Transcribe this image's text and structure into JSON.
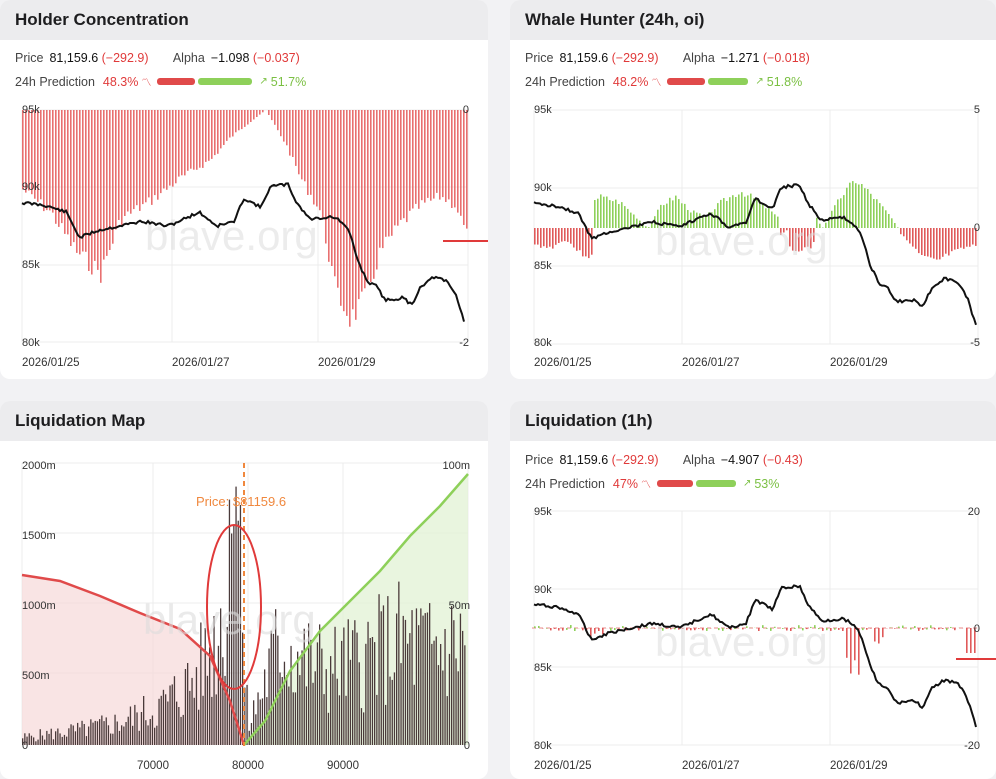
{
  "panels": {
    "holder": {
      "title": "Holder Concentration",
      "price_label": "Price",
      "price": "81,159.6",
      "price_change": "(−292.9)",
      "alpha_label": "Alpha",
      "alpha": "−1.098",
      "alpha_change": "(−0.037)",
      "pred_label": "24h Prediction",
      "pred_down": "48.3%",
      "pred_up": "51.7%",
      "left_ticks": [
        "95k",
        "90k",
        "85k",
        "80k"
      ],
      "right_ticks": [
        "0",
        "-2"
      ],
      "x_ticks": [
        "2026/01/25",
        "2026/01/27",
        "2026/01/29"
      ],
      "watermark": "blave.org"
    },
    "whale": {
      "title": "Whale Hunter (24h, oi)",
      "price_label": "Price",
      "price": "81,159.6",
      "price_change": "(−292.9)",
      "alpha_label": "Alpha",
      "alpha": "−1.271",
      "alpha_change": "(−0.018)",
      "pred_label": "24h Prediction",
      "pred_down": "48.2%",
      "pred_up": "51.8%",
      "left_ticks": [
        "95k",
        "90k",
        "85k",
        "80k"
      ],
      "right_ticks": [
        "5",
        "0",
        "-5"
      ],
      "x_ticks": [
        "2026/01/25",
        "2026/01/27",
        "2026/01/29"
      ],
      "watermark": "blave.org"
    },
    "liqmap": {
      "title": "Liquidation Map",
      "left_ticks": [
        "2000m",
        "1500m",
        "1000m",
        "500m",
        "0"
      ],
      "right_ticks": [
        "100m",
        "50m",
        "0"
      ],
      "x_ticks": [
        "70000",
        "80000",
        "90000"
      ],
      "price_annotation": "Price: $81159.6",
      "watermark": "blave.org"
    },
    "liq1h": {
      "title": "Liquidation (1h)",
      "price_label": "Price",
      "price": "81,159.6",
      "price_change": "(−292.9)",
      "alpha_label": "Alpha",
      "alpha": "−4.907",
      "alpha_change": "(−0.43)",
      "pred_label": "24h Prediction",
      "pred_down": "47%",
      "pred_up": "53%",
      "left_ticks": [
        "95k",
        "90k",
        "85k",
        "80k"
      ],
      "right_ticks": [
        "20",
        "0",
        "-20"
      ],
      "x_ticks": [
        "2026/01/25",
        "2026/01/27",
        "2026/01/29"
      ],
      "watermark": "blave.org"
    }
  },
  "colors": {
    "red": "#e03a3a",
    "green": "#8ed05a",
    "orange": "#f0883e",
    "line": "#111111"
  }
}
